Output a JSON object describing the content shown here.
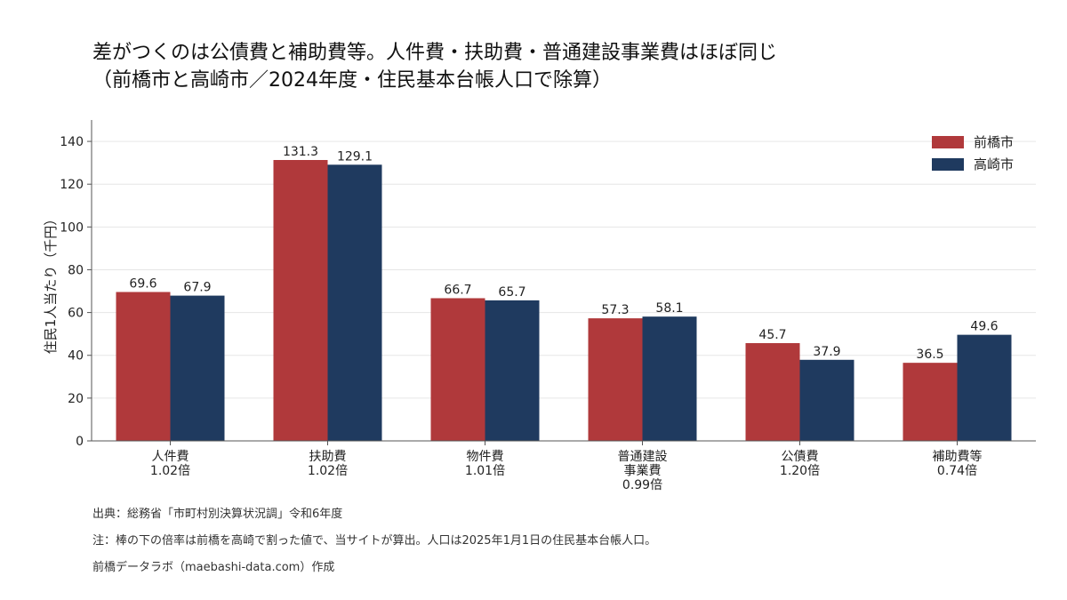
{
  "title": {
    "line1": "差がつくのは公債費と補助費等。人件費・扶助費・普通建設事業費はほぼ同じ",
    "line2": "（前橋市と高崎市／2024年度・住民基本台帳人口で除算）"
  },
  "chart_data": {
    "type": "bar",
    "categories": [
      {
        "lines": [
          "人件費",
          "1.02倍"
        ]
      },
      {
        "lines": [
          "扶助費",
          "1.02倍"
        ]
      },
      {
        "lines": [
          "物件費",
          "1.01倍"
        ]
      },
      {
        "lines": [
          "普通建設",
          "事業費",
          "0.99倍"
        ]
      },
      {
        "lines": [
          "公債費",
          "1.20倍"
        ]
      },
      {
        "lines": [
          "補助費等",
          "0.74倍"
        ]
      }
    ],
    "series": [
      {
        "name": "前橋市",
        "color": "#b0393b",
        "values": [
          69.6,
          131.3,
          66.7,
          57.3,
          45.7,
          36.5
        ],
        "labels": [
          "69.6",
          "131.3",
          "66.7",
          "57.3",
          "45.7",
          "36.5"
        ]
      },
      {
        "name": "高崎市",
        "color": "#1f3a5f",
        "values": [
          67.9,
          129.1,
          65.7,
          58.1,
          37.9,
          49.6
        ],
        "labels": [
          "67.9",
          "129.1",
          "65.7",
          "58.1",
          "37.9",
          "49.6"
        ]
      }
    ],
    "ylabel": "住民1人当たり（千円）",
    "ylim": [
      0,
      150
    ],
    "yticks": [
      0,
      20,
      40,
      60,
      80,
      100,
      120,
      140
    ],
    "grid": true,
    "legend_position": "top-right"
  },
  "notes": {
    "source": "出典：総務省「市町村別決算状況調」令和6年度",
    "note": "注：棒の下の倍率は前橋を高崎で割った値で、当サイトが算出。人口は2025年1月1日の住民基本台帳人口。",
    "credit": "前橋データラボ（maebashi-data.com）作成"
  }
}
